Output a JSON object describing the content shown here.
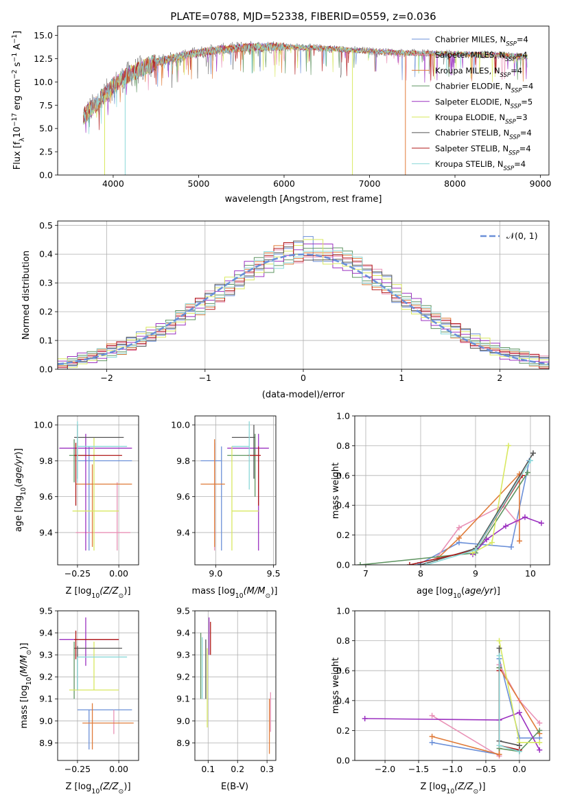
{
  "colors": [
    "#6a8fd8",
    "#e991b6",
    "#e07b39",
    "#5e9460",
    "#9b30c0",
    "#d8e860",
    "#555555",
    "#b01818",
    "#8ad8d8"
  ],
  "chart_data": [
    {
      "id": "spectrum",
      "type": "line",
      "title": "PLATE=0788, MJD=52338, FIBERID=0559, z=0.036",
      "xlabel": "wavelength [Angstrom, rest frame]",
      "ylabel_parts": [
        "Flux [f",
        "λ",
        "10",
        "−17",
        " erg cm",
        "−2",
        " s",
        "−1",
        " A",
        "−1",
        "]"
      ],
      "xlim": [
        3350,
        9100
      ],
      "ylim": [
        0,
        16
      ],
      "xticks": [
        4000,
        5000,
        6000,
        7000,
        8000,
        9000
      ],
      "yticks": [
        0.0,
        2.5,
        5.0,
        7.5,
        10.0,
        12.5,
        15.0
      ],
      "ytick_labels": [
        "0.0",
        "2.5",
        "5.0",
        "7.5",
        "10.0",
        "12.5",
        "15.0"
      ],
      "grid": false,
      "legend_position": "right",
      "data_x_range": [
        3650,
        8850
      ],
      "continuum": {
        "x": [
          3650,
          3800,
          4000,
          4200,
          4500,
          4800,
          5100,
          5500,
          6000,
          6500,
          7000,
          7500,
          8000,
          8500,
          8850
        ],
        "y": [
          6.3,
          7.6,
          9.6,
          10.9,
          12.1,
          12.8,
          13.3,
          13.7,
          13.8,
          13.6,
          13.3,
          13.1,
          13.0,
          12.9,
          12.7
        ]
      },
      "series": [
        {
          "label": "Chabrier MILES",
          "sub": "SSP",
          "n": 4
        },
        {
          "label": "Salpeter MILES",
          "sub": "SSP",
          "n": 4
        },
        {
          "label": "Kroupa MILES",
          "sub": "SSP",
          "n": 4
        },
        {
          "label": "Chabrier ELODIE",
          "sub": "SSP",
          "n": 4
        },
        {
          "label": "Salpeter ELODIE",
          "sub": "SSP",
          "n": 5
        },
        {
          "label": "Kroupa ELODIE",
          "sub": "SSP",
          "n": 3
        },
        {
          "label": "Chabrier STELIB",
          "sub": "SSP",
          "n": 4
        },
        {
          "label": "Salpeter STELIB",
          "sub": "SSP",
          "n": 4
        },
        {
          "label": "Kroupa STELIB",
          "sub": "SSP",
          "n": 4
        }
      ],
      "drops": [
        {
          "x": 3900,
          "color": 5
        },
        {
          "x": 4140,
          "color": 8
        },
        {
          "x": 6800,
          "color": 5
        },
        {
          "x": 7420,
          "color": 2
        }
      ]
    },
    {
      "id": "residuals",
      "type": "histogram",
      "xlabel": "(data-model)/error",
      "ylabel": "Normed distribution",
      "xlim": [
        -2.5,
        2.5
      ],
      "ylim": [
        0,
        0.515
      ],
      "xticks": [
        -2,
        -1,
        0,
        1,
        2
      ],
      "xtick_labels": [
        "−2",
        "−1",
        "0",
        "1",
        "2"
      ],
      "yticks": [
        0.0,
        0.1,
        0.2,
        0.3,
        0.4,
        0.5
      ],
      "ytick_labels": [
        "0.0",
        "0.1",
        "0.2",
        "0.3",
        "0.4",
        "0.5"
      ],
      "grid": true,
      "legend_position": "top-right",
      "reference": {
        "label": "𝒩(0, 1)",
        "mean": 0,
        "sigma": 1,
        "color": "#6a8fd8"
      },
      "bin_edges": [
        -2.5,
        -2.4,
        -2.3,
        -2.2,
        -2.1,
        -2.0,
        -1.9,
        -1.8,
        -1.7,
        -1.6,
        -1.5,
        -1.4,
        -1.3,
        -1.2,
        -1.1,
        -1.0,
        -0.9,
        -0.8,
        -0.7,
        -0.6,
        -0.5,
        -0.4,
        -0.3,
        -0.2,
        -0.1,
        0.0,
        0.1,
        0.2,
        0.3,
        0.4,
        0.5,
        0.6,
        0.7,
        0.8,
        0.9,
        1.0,
        1.1,
        1.2,
        1.3,
        1.4,
        1.5,
        1.6,
        1.7,
        1.8,
        1.9,
        2.0,
        2.1,
        2.2,
        2.3,
        2.4,
        2.5
      ],
      "values": [
        0.018,
        0.028,
        0.035,
        0.042,
        0.052,
        0.065,
        0.072,
        0.09,
        0.105,
        0.12,
        0.135,
        0.15,
        0.175,
        0.198,
        0.22,
        0.24,
        0.262,
        0.29,
        0.315,
        0.338,
        0.355,
        0.375,
        0.39,
        0.4,
        0.41,
        0.42,
        0.41,
        0.4,
        0.392,
        0.372,
        0.352,
        0.33,
        0.312,
        0.292,
        0.265,
        0.24,
        0.215,
        0.195,
        0.17,
        0.15,
        0.132,
        0.118,
        0.098,
        0.084,
        0.07,
        0.058,
        0.048,
        0.04,
        0.033,
        0.025
      ]
    },
    {
      "id": "age-vs-z",
      "type": "errorbar",
      "xlabel_parts": [
        "Z [log",
        "10",
        "(Z/Z",
        "⊙",
        ")]"
      ],
      "ylabel_parts": [
        "age  [log",
        "10",
        "(",
        "age/yr",
        ")]"
      ],
      "xlim": [
        -0.37,
        0.12
      ],
      "ylim": [
        9.22,
        10.05
      ],
      "xticks": [
        -0.25,
        0.0
      ],
      "xtick_labels": [
        "−0.25",
        "0.00"
      ],
      "yticks": [
        9.4,
        9.6,
        9.8,
        10.0
      ],
      "ytick_labels": [
        "9.4",
        "9.6",
        "9.8",
        "10.0"
      ],
      "grid": true,
      "points": [
        {
          "x": -0.18,
          "xlo": -0.25,
          "xhi": 0.08,
          "y": 9.8,
          "ylo": 9.3,
          "yhi": 9.88
        },
        {
          "x": -0.01,
          "xlo": -0.26,
          "xhi": 0.07,
          "y": 9.4,
          "ylo": 9.3,
          "yhi": 9.68
        },
        {
          "x": -0.16,
          "xlo": -0.26,
          "xhi": 0.08,
          "y": 9.67,
          "ylo": 9.32,
          "yhi": 9.78
        },
        {
          "x": -0.27,
          "xlo": -0.3,
          "xhi": -0.2,
          "y": 9.83,
          "ylo": 9.68,
          "yhi": 9.92
        },
        {
          "x": -0.2,
          "xlo": -0.36,
          "xhi": 0.08,
          "y": 9.87,
          "ylo": 9.3,
          "yhi": 9.95
        },
        {
          "x": -0.15,
          "xlo": -0.28,
          "xhi": 0.0,
          "y": 9.52,
          "ylo": 9.3,
          "yhi": 9.93
        },
        {
          "x": -0.25,
          "xlo": -0.27,
          "xhi": 0.03,
          "y": 9.93,
          "ylo": 9.7,
          "yhi": 10.0
        },
        {
          "x": -0.26,
          "xlo": -0.27,
          "xhi": 0.02,
          "y": 9.83,
          "ylo": 9.55,
          "yhi": 9.9
        },
        {
          "x": -0.25,
          "xlo": -0.25,
          "xhi": 0.05,
          "y": 9.88,
          "ylo": 9.68,
          "yhi": 10.02
        }
      ]
    },
    {
      "id": "age-vs-mass",
      "type": "errorbar",
      "xlabel_parts": [
        "mass [log",
        "10",
        "(M/M",
        "⊙",
        ")]"
      ],
      "xlim": [
        8.82,
        9.52
      ],
      "ylim": [
        9.22,
        10.05
      ],
      "xticks": [
        9.0,
        9.5
      ],
      "xtick_labels": [
        "9.0",
        "9.5"
      ],
      "yticks": [
        9.4,
        9.6,
        9.8,
        10.0
      ],
      "ytick_labels": [
        "9.4",
        "9.6",
        "9.8",
        "10.0"
      ],
      "grid": true,
      "points": [
        {
          "x": 9.05,
          "xlo": 8.87,
          "xhi": 9.05,
          "y": 9.8,
          "ylo": 9.3,
          "yhi": 9.88
        },
        {
          "x": 8.99,
          "xlo": 8.99,
          "xhi": 9.0,
          "y": 9.4,
          "ylo": 9.3,
          "yhi": 9.9
        },
        {
          "x": 8.99,
          "xlo": 8.87,
          "xhi": 9.08,
          "y": 9.67,
          "ylo": 9.32,
          "yhi": 9.92
        },
        {
          "x": 9.34,
          "xlo": 9.1,
          "xhi": 9.36,
          "y": 9.83,
          "ylo": 9.6,
          "yhi": 9.95
        },
        {
          "x": 9.37,
          "xlo": 9.1,
          "xhi": 9.46,
          "y": 9.87,
          "ylo": 9.3,
          "yhi": 9.95
        },
        {
          "x": 9.14,
          "xlo": 9.14,
          "xhi": 9.37,
          "y": 9.52,
          "ylo": 9.3,
          "yhi": 9.88
        },
        {
          "x": 9.33,
          "xlo": 9.14,
          "xhi": 9.34,
          "y": 9.93,
          "ylo": 9.7,
          "yhi": 10.0
        },
        {
          "x": 9.37,
          "xlo": 9.28,
          "xhi": 9.39,
          "y": 9.83,
          "ylo": 9.55,
          "yhi": 9.88
        },
        {
          "x": 9.29,
          "xlo": 9.14,
          "xhi": 9.29,
          "y": 9.88,
          "ylo": 9.64,
          "yhi": 10.02
        }
      ]
    },
    {
      "id": "weight-vs-age",
      "type": "line",
      "xlabel_parts": [
        "age  [log",
        "10",
        "(",
        "age/yr",
        ")]"
      ],
      "ylabel": "mass weight",
      "xlim": [
        6.8,
        10.35
      ],
      "ylim": [
        0,
        1.0
      ],
      "xticks": [
        7,
        8,
        9,
        10
      ],
      "xtick_labels": [
        "7",
        "8",
        "9",
        "10"
      ],
      "yticks": [
        0.0,
        0.2,
        0.4,
        0.6,
        0.8,
        1.0
      ],
      "ytick_labels": [
        "0.0",
        "0.2",
        "0.4",
        "0.6",
        "0.8",
        "1.0"
      ],
      "grid": true,
      "series": [
        {
          "color": 0,
          "x": [
            7.95,
            8.7,
            9.65,
            9.98
          ],
          "y": [
            0.0,
            0.15,
            0.12,
            0.7
          ]
        },
        {
          "color": 1,
          "x": [
            8.3,
            8.7,
            9.5,
            9.75
          ],
          "y": [
            0.05,
            0.25,
            0.4,
            0.29
          ]
        },
        {
          "color": 2,
          "x": [
            8.3,
            8.7,
            9.8,
            9.8
          ],
          "y": [
            0.04,
            0.18,
            0.61,
            0.16
          ]
        },
        {
          "color": 3,
          "x": [
            6.9,
            9.0,
            9.95
          ],
          "y": [
            0.0,
            0.08,
            0.62
          ]
        },
        {
          "color": 4,
          "x": [
            8.95,
            9.2,
            9.55,
            9.9,
            10.2
          ],
          "y": [
            0.07,
            0.17,
            0.26,
            0.32,
            0.28
          ]
        },
        {
          "color": 5,
          "x": [
            8.95,
            9.3,
            9.6
          ],
          "y": [
            0.08,
            0.15,
            0.8
          ]
        },
        {
          "color": 6,
          "x": [
            8.0,
            9.0,
            10.05
          ],
          "y": [
            0.0,
            0.11,
            0.75
          ]
        },
        {
          "color": 7,
          "x": [
            7.8,
            9.0,
            9.85
          ],
          "y": [
            0.0,
            0.1,
            0.6
          ]
        },
        {
          "color": 8,
          "x": [
            8.1,
            9.0,
            10.0
          ],
          "y": [
            0.0,
            0.1,
            0.7
          ]
        }
      ]
    },
    {
      "id": "mass-vs-z",
      "type": "errorbar",
      "xlabel_parts": [
        "Z [log",
        "10",
        "(Z/Z",
        "⊙",
        ")]"
      ],
      "ylabel_parts": [
        "mass [log",
        "10",
        "(M/M",
        "⊙",
        ")]"
      ],
      "xlim": [
        -0.37,
        0.12
      ],
      "ylim": [
        8.82,
        9.5
      ],
      "xticks": [
        -0.25,
        0.0
      ],
      "xtick_labels": [
        "−0.25",
        "0.00"
      ],
      "yticks": [
        8.9,
        9.0,
        9.1,
        9.2,
        9.3,
        9.4,
        9.5
      ],
      "ytick_labels": [
        "8.9",
        "9.0",
        "9.1",
        "9.2",
        "9.3",
        "9.4",
        "9.5"
      ],
      "grid": true,
      "points": [
        {
          "x": -0.18,
          "xlo": -0.25,
          "xhi": 0.08,
          "y": 9.05,
          "ylo": 8.87,
          "yhi": 9.05
        },
        {
          "x": -0.03,
          "xlo": -0.03,
          "xhi": -0.03,
          "y": 9.01,
          "ylo": 8.94,
          "yhi": 9.05
        },
        {
          "x": -0.16,
          "xlo": -0.22,
          "xhi": 0.09,
          "y": 8.99,
          "ylo": 8.87,
          "yhi": 9.08
        },
        {
          "x": -0.27,
          "xlo": -0.27,
          "xhi": -0.27,
          "y": 9.34,
          "ylo": 9.1,
          "yhi": 9.36
        },
        {
          "x": -0.2,
          "xlo": -0.36,
          "xhi": 0.0,
          "y": 9.37,
          "ylo": 9.25,
          "yhi": 9.47
        },
        {
          "x": -0.15,
          "xlo": -0.3,
          "xhi": 0.0,
          "y": 9.14,
          "ylo": 9.14,
          "yhi": 9.36
        },
        {
          "x": -0.25,
          "xlo": -0.27,
          "xhi": 0.02,
          "y": 9.33,
          "ylo": 9.14,
          "yhi": 9.34
        },
        {
          "x": -0.26,
          "xlo": -0.27,
          "xhi": 0.0,
          "y": 9.37,
          "ylo": 9.28,
          "yhi": 9.41
        },
        {
          "x": -0.25,
          "xlo": -0.25,
          "xhi": 0.05,
          "y": 9.29,
          "ylo": 9.14,
          "yhi": 9.29
        }
      ]
    },
    {
      "id": "mass-vs-ebv",
      "type": "errorbar",
      "xlabel": "E(B-V)",
      "xlim": [
        0.055,
        0.33
      ],
      "ylim": [
        8.82,
        9.5
      ],
      "xticks": [
        0.1,
        0.2,
        0.3
      ],
      "xtick_labels": [
        "0.1",
        "0.2",
        "0.3"
      ],
      "yticks": [
        8.9,
        9.0,
        9.1,
        9.2,
        9.3,
        9.4,
        9.5
      ],
      "ytick_labels": [
        "8.9",
        "9.0",
        "9.1",
        "9.2",
        "9.3",
        "9.4",
        "9.5"
      ],
      "grid": true,
      "points": [
        {
          "x": 0.075,
          "xlo": 0.075,
          "xhi": 0.075,
          "y": 9.1,
          "ylo": 9.1,
          "yhi": 9.4
        },
        {
          "x": 0.08,
          "xlo": 0.08,
          "xhi": 0.08,
          "y": 9.2,
          "ylo": 9.1,
          "yhi": 9.38
        },
        {
          "x": 0.092,
          "xlo": 0.092,
          "xhi": 0.092,
          "y": 9.25,
          "ylo": 9.1,
          "yhi": 9.37
        },
        {
          "x": 0.097,
          "xlo": 0.097,
          "xhi": 0.097,
          "y": 9.05,
          "ylo": 8.97,
          "yhi": 9.33
        },
        {
          "x": 0.103,
          "xlo": 0.103,
          "xhi": 0.103,
          "y": 9.37,
          "ylo": 9.3,
          "yhi": 9.47
        },
        {
          "x": 0.108,
          "xlo": 0.108,
          "xhi": 0.108,
          "y": 9.37,
          "ylo": 9.3,
          "yhi": 9.45
        },
        {
          "x": 0.308,
          "xlo": 0.308,
          "xhi": 0.308,
          "y": 9.0,
          "ylo": 8.85,
          "yhi": 9.1
        },
        {
          "x": 0.312,
          "xlo": 0.312,
          "xhi": 0.312,
          "y": 9.05,
          "ylo": 8.95,
          "yhi": 9.13
        }
      ],
      "point_colors": [
        3,
        8,
        6,
        5,
        4,
        7,
        2,
        1
      ]
    },
    {
      "id": "weight-vs-z",
      "type": "line",
      "xlabel_parts": [
        "Z [log",
        "10",
        "(Z/Z",
        "⊙",
        ")]"
      ],
      "ylabel": "mass weight",
      "xlim": [
        -2.45,
        0.45
      ],
      "ylim": [
        0,
        1.0
      ],
      "xticks": [
        -2.0,
        -1.5,
        -1.0,
        -0.5,
        0.0
      ],
      "xtick_labels": [
        "−2.0",
        "−1.5",
        "−1.0",
        "−0.5",
        "0.0"
      ],
      "yticks": [
        0.0,
        0.2,
        0.4,
        0.6,
        0.8,
        1.0
      ],
      "ytick_labels": [
        "0.0",
        "0.2",
        "0.4",
        "0.6",
        "0.8",
        "1.0"
      ],
      "grid": true,
      "series": [
        {
          "color": 0,
          "x": [
            -1.3,
            -0.3,
            -0.3,
            0.0,
            0.3
          ],
          "y": [
            0.12,
            0.04,
            0.68,
            0.15,
            0.15
          ]
        },
        {
          "color": 1,
          "x": [
            -1.3,
            -0.3,
            -0.3,
            0.0,
            0.3
          ],
          "y": [
            0.3,
            0.03,
            0.64,
            0.4,
            0.25
          ]
        },
        {
          "color": 2,
          "x": [
            -1.3,
            -0.3,
            -0.3,
            0.3
          ],
          "y": [
            0.16,
            0.04,
            0.62,
            0.18
          ]
        },
        {
          "color": 3,
          "x": [
            -0.3,
            -0.3,
            0.0,
            0.3
          ],
          "y": [
            0.62,
            0.08,
            0.06,
            0.2
          ]
        },
        {
          "color": 4,
          "x": [
            -2.3,
            -0.3,
            0.0,
            0.3
          ],
          "y": [
            0.28,
            0.27,
            0.32,
            0.07
          ]
        },
        {
          "color": 5,
          "x": [
            -0.3,
            0.0,
            0.3
          ],
          "y": [
            0.8,
            0.12,
            0.12
          ]
        },
        {
          "color": 6,
          "x": [
            -0.3,
            -0.3,
            0.0
          ],
          "y": [
            0.75,
            0.13,
            0.1
          ]
        },
        {
          "color": 7,
          "x": [
            -0.3,
            -0.3,
            0.0
          ],
          "y": [
            0.6,
            0.1,
            0.07
          ]
        },
        {
          "color": 8,
          "x": [
            -0.3,
            -0.3,
            0.0
          ],
          "y": [
            0.7,
            0.1,
            0.06
          ]
        }
      ]
    }
  ]
}
